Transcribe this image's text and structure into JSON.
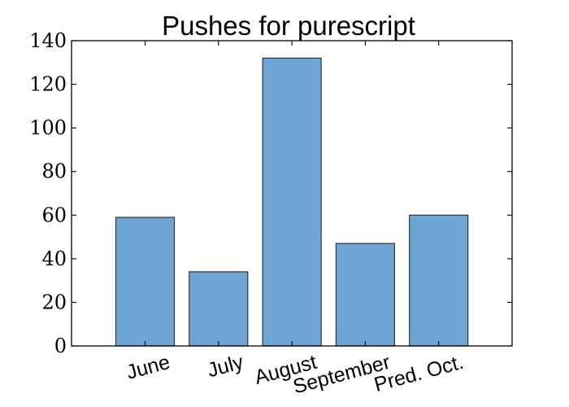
{
  "chart_data": {
    "type": "bar",
    "title": "Pushes for purescript",
    "categories": [
      "June",
      "July",
      "August",
      "September",
      "Pred. Oct."
    ],
    "values": [
      59,
      34,
      132,
      47,
      60
    ],
    "xlabel": "",
    "ylabel": "",
    "ylim": [
      0,
      140
    ],
    "yticks": [
      0,
      20,
      40,
      60,
      80,
      100,
      120,
      140
    ],
    "grid": false,
    "bar_color": "#6fa5d5",
    "edge_color": "#333333"
  }
}
